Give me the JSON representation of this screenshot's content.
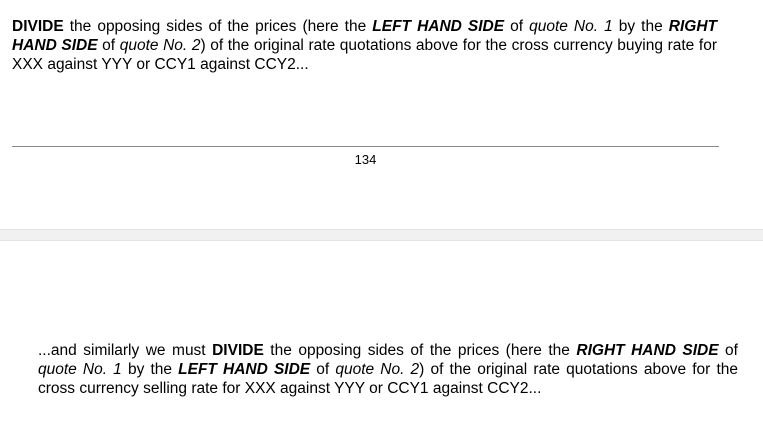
{
  "page1": {
    "paragraph": [
      {
        "text": "DIVIDE",
        "style": "b"
      },
      {
        "text": " the opposing sides of the prices (here the ",
        "style": ""
      },
      {
        "text": "LEFT HAND SIDE",
        "style": "bi"
      },
      {
        "text": " of ",
        "style": ""
      },
      {
        "text": "quote No. 1",
        "style": "i"
      },
      {
        "text": " by the ",
        "style": ""
      },
      {
        "text": "RIGHT HAND SIDE",
        "style": "bi"
      },
      {
        "text": " of ",
        "style": ""
      },
      {
        "text": "quote No. 2",
        "style": "i"
      },
      {
        "text": ") of the original rate quotations above for the cross currency buying rate for XXX against YYY or CCY1 against CCY2...",
        "style": ""
      }
    ],
    "page_number": "134"
  },
  "page2": {
    "paragraph": [
      {
        "text": "...and similarly we must ",
        "style": ""
      },
      {
        "text": "DIVIDE",
        "style": "b"
      },
      {
        "text": " the opposing sides of the prices (here the ",
        "style": ""
      },
      {
        "text": "RIGHT HAND SIDE",
        "style": "bi"
      },
      {
        "text": " of ",
        "style": ""
      },
      {
        "text": "quote No. 1",
        "style": "i"
      },
      {
        "text": " by the ",
        "style": ""
      },
      {
        "text": "LEFT HAND SIDE",
        "style": "bi"
      },
      {
        "text": " of ",
        "style": ""
      },
      {
        "text": "quote No. 2",
        "style": "i"
      },
      {
        "text": ") of the original rate quotations above for the cross currency selling rate for XXX against YYY or CCY1 against CCY2...",
        "style": ""
      }
    ]
  },
  "colors": {
    "page_background": "#ffffff",
    "page_gap": "#f1f1f1",
    "footer_rule": "#8a8a8a",
    "text": "#000000"
  }
}
